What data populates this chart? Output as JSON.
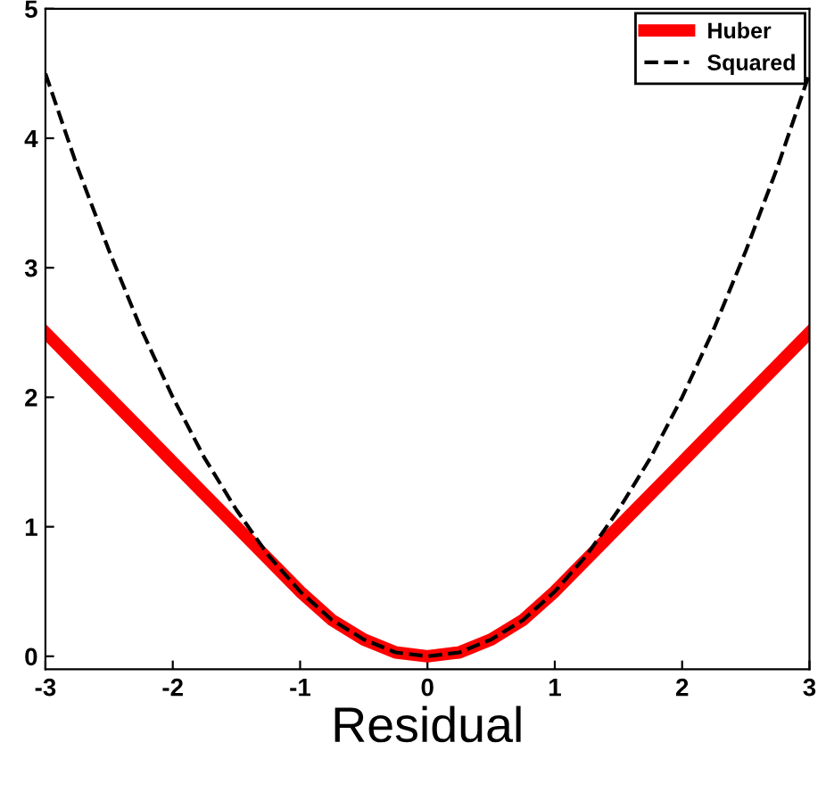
{
  "chart_data": {
    "type": "line",
    "xlabel": "Residual",
    "x": [
      -3,
      -2.75,
      -2.5,
      -2.25,
      -2,
      -1.75,
      -1.5,
      -1.25,
      -1,
      -0.75,
      -0.5,
      -0.25,
      0,
      0.25,
      0.5,
      0.75,
      1,
      1.25,
      1.5,
      1.75,
      2,
      2.25,
      2.5,
      2.75,
      3
    ],
    "series": [
      {
        "name": "Huber",
        "color": "#ff0000",
        "line_style": "solid",
        "values": [
          2.5,
          2.25,
          2,
          1.75,
          1.5,
          1.25,
          1,
          0.75,
          0.5,
          0.28,
          0.13,
          0.03,
          0,
          0.03,
          0.13,
          0.28,
          0.5,
          0.75,
          1,
          1.25,
          1.5,
          1.75,
          2,
          2.25,
          2.5
        ]
      },
      {
        "name": "Squared",
        "color": "#000000",
        "line_style": "dashed",
        "values": [
          4.5,
          3.78,
          3.13,
          2.53,
          2,
          1.53,
          1.13,
          0.78,
          0.5,
          0.28,
          0.13,
          0.03,
          0,
          0.03,
          0.13,
          0.28,
          0.5,
          0.78,
          1.13,
          1.53,
          2,
          2.53,
          3.13,
          3.78,
          4.5
        ]
      }
    ],
    "xlim": [
      -3,
      3
    ],
    "ylim": [
      -0.1,
      5
    ],
    "xticks": [
      -3,
      -2,
      -1,
      0,
      1,
      2,
      3
    ],
    "yticks": [
      0,
      1,
      2,
      3,
      4,
      5
    ],
    "legend": "top right",
    "grid": false
  }
}
